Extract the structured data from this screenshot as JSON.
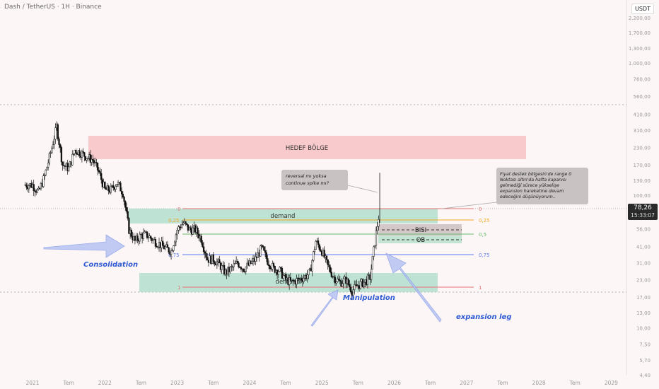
{
  "header": {
    "title": "Dash / TetherUS · 1H · Binance",
    "currency": "USDT"
  },
  "price_tag": {
    "price": "78,26",
    "time": "15:33:07"
  },
  "colors": {
    "bull": "#26a69a",
    "bear": "#ef5350",
    "candle": "#111111",
    "zone_green": "#a8dcc8",
    "zone_red": "#f8c7c9",
    "fib_blue": "#5c7cf0",
    "fib_red": "#e57373",
    "fib_orange": "#f5a623",
    "fib_green": "#66bb6a",
    "arrow": "#8aa0e8",
    "label_blue": "#2f5bd3"
  },
  "chart_data": {
    "type": "candlestick",
    "title": "Dash / TetherUS · 1H · Binance",
    "y_scale": "log",
    "y_ticks": [
      "2.200,00",
      "1.700,00",
      "1.300,00",
      "1.000,00",
      "760,00",
      "560,00",
      "410,00",
      "310,00",
      "230,00",
      "170,00",
      "130,00",
      "100,00",
      "56,00",
      "41,00",
      "31,00",
      "23,00",
      "17,00",
      "13,00",
      "10,00",
      "7,50",
      "5,70",
      "4,40"
    ],
    "y_tick_values": [
      2200,
      1700,
      1300,
      1000,
      760,
      560,
      410,
      310,
      230,
      170,
      130,
      100,
      56,
      41,
      31,
      23,
      17,
      13,
      10,
      7.5,
      5.7,
      4.4
    ],
    "x_ticks": [
      "2021",
      "Tem",
      "2022",
      "Tem",
      "2023",
      "Tem",
      "2024",
      "Tem",
      "2025",
      "Tem",
      "2026",
      "Tem",
      "2027",
      "Tem",
      "2028",
      "Tem",
      "2029"
    ],
    "x_tick_dates": [
      "2021-01",
      "2021-07",
      "2022-01",
      "2022-07",
      "2023-01",
      "2023-07",
      "2024-01",
      "2024-07",
      "2025-01",
      "2025-07",
      "2026-01",
      "2026-07",
      "2027-01",
      "2027-07",
      "2028-01",
      "2028-07",
      "2029-01"
    ],
    "last_price": 78.26,
    "series": [
      {
        "date": "2021-01",
        "value": 120
      },
      {
        "date": "2021-02",
        "value": 105
      },
      {
        "date": "2021-03",
        "value": 140
      },
      {
        "date": "2021-04",
        "value": 210
      },
      {
        "date": "2021-05",
        "value": 330
      },
      {
        "date": "2021-06",
        "value": 170
      },
      {
        "date": "2021-07",
        "value": 160
      },
      {
        "date": "2021-08",
        "value": 220
      },
      {
        "date": "2021-09",
        "value": 210
      },
      {
        "date": "2021-10",
        "value": 195
      },
      {
        "date": "2021-11",
        "value": 185
      },
      {
        "date": "2021-12",
        "value": 150
      },
      {
        "date": "2022-01",
        "value": 110
      },
      {
        "date": "2022-02",
        "value": 110
      },
      {
        "date": "2022-03",
        "value": 125
      },
      {
        "date": "2022-04",
        "value": 105
      },
      {
        "date": "2022-05",
        "value": 55
      },
      {
        "date": "2022-06",
        "value": 45
      },
      {
        "date": "2022-07",
        "value": 50
      },
      {
        "date": "2022-08",
        "value": 50
      },
      {
        "date": "2022-09",
        "value": 46
      },
      {
        "date": "2022-10",
        "value": 43
      },
      {
        "date": "2022-11",
        "value": 40
      },
      {
        "date": "2022-12",
        "value": 38
      },
      {
        "date": "2023-01",
        "value": 55
      },
      {
        "date": "2023-02",
        "value": 62
      },
      {
        "date": "2023-03",
        "value": 55
      },
      {
        "date": "2023-04",
        "value": 55
      },
      {
        "date": "2023-05",
        "value": 47
      },
      {
        "date": "2023-06",
        "value": 33
      },
      {
        "date": "2023-07",
        "value": 33
      },
      {
        "date": "2023-08",
        "value": 30
      },
      {
        "date": "2023-09",
        "value": 26
      },
      {
        "date": "2023-10",
        "value": 28
      },
      {
        "date": "2023-11",
        "value": 31
      },
      {
        "date": "2023-12",
        "value": 28
      },
      {
        "date": "2024-01",
        "value": 30
      },
      {
        "date": "2024-02",
        "value": 33
      },
      {
        "date": "2024-03",
        "value": 40
      },
      {
        "date": "2024-04",
        "value": 32
      },
      {
        "date": "2024-05",
        "value": 28
      },
      {
        "date": "2024-06",
        "value": 27
      },
      {
        "date": "2024-07",
        "value": 23
      },
      {
        "date": "2024-08",
        "value": 22
      },
      {
        "date": "2024-09",
        "value": 23
      },
      {
        "date": "2024-10",
        "value": 24
      },
      {
        "date": "2024-11",
        "value": 26
      },
      {
        "date": "2024-12",
        "value": 45
      },
      {
        "date": "2025-01",
        "value": 38
      },
      {
        "date": "2025-02",
        "value": 29
      },
      {
        "date": "2025-03",
        "value": 24
      },
      {
        "date": "2025-04",
        "value": 22
      },
      {
        "date": "2025-05",
        "value": 23
      },
      {
        "date": "2025-06",
        "value": 19
      },
      {
        "date": "2025-07",
        "value": 21
      },
      {
        "date": "2025-08",
        "value": 22
      },
      {
        "date": "2025-09",
        "value": 24
      },
      {
        "date": "2025-10",
        "value": 52
      },
      {
        "date": "2025-10b",
        "value": 78.26
      }
    ],
    "zones": [
      {
        "label": "HEDEF BÖLGE",
        "y_low": 178,
        "y_high": 265,
        "x_from": "2021-10",
        "x_to": "2027-11"
      },
      {
        "label": "demand",
        "y_low": 60,
        "y_high": 78,
        "x_from": "2022-06",
        "x_to": "2026-08"
      },
      {
        "label": "demand",
        "y_low": 17.5,
        "y_high": 24,
        "x_from": "2022-07",
        "x_to": "2026-08"
      },
      {
        "label": "BISI",
        "y_low": 46,
        "y_high": 57,
        "x_from": "2025-11",
        "x_to": "2026-10"
      },
      {
        "label": "OB",
        "y_low": 41,
        "y_high": 46,
        "x_from": "2025-11",
        "x_to": "2026-10"
      }
    ],
    "fib_levels": [
      {
        "label": "0",
        "value": 78
      },
      {
        "label": "0,25",
        "value": 61
      },
      {
        "label": "0,5",
        "value": 48
      },
      {
        "label": "0,75",
        "value": 35
      },
      {
        "label": "1",
        "value": 18
      }
    ],
    "annotations": [
      {
        "text": "Consolidation"
      },
      {
        "text": "Manipulation"
      },
      {
        "text": "expansion leg"
      },
      {
        "text": "reversal mı yoksa continue spike mı?"
      },
      {
        "text": "Fiyat destek bölgesin'de range 0 Noktası altın'da hafta kapanısı gelmediği sürece yükselişe expansion hareketine devam edeceğini düşünüyorum.."
      }
    ]
  }
}
